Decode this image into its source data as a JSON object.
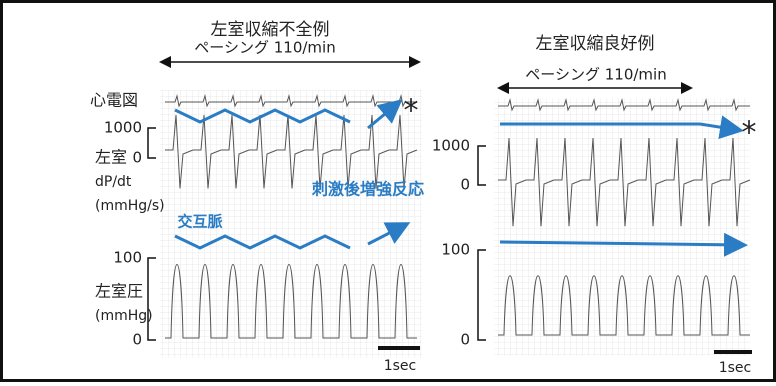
{
  "panels": [
    {
      "title": "左室収縮不全例",
      "pacing": "ペーシング 110/min",
      "ecg_label": "心電図",
      "dpdt_top": "1000",
      "dpdt_zero": "0",
      "dpdt_label": [
        "左室",
        "dP/dt",
        "(mmHg/s)"
      ],
      "annotation_potentiation": "刺激後増強反応",
      "annotation_alternans": "交互脈",
      "lvp_top": "100",
      "lvp_zero": "0",
      "lvp_label": [
        "左室圧",
        "(mmHg)"
      ],
      "scale": "1sec",
      "marker": "*"
    },
    {
      "title": "左室収縮良好例",
      "pacing": "ペーシング 110/min",
      "dpdt_top": "1000",
      "dpdt_zero": "0",
      "lvp_top": "100",
      "lvp_zero": "0",
      "scale": "1sec",
      "marker": "*"
    }
  ]
}
